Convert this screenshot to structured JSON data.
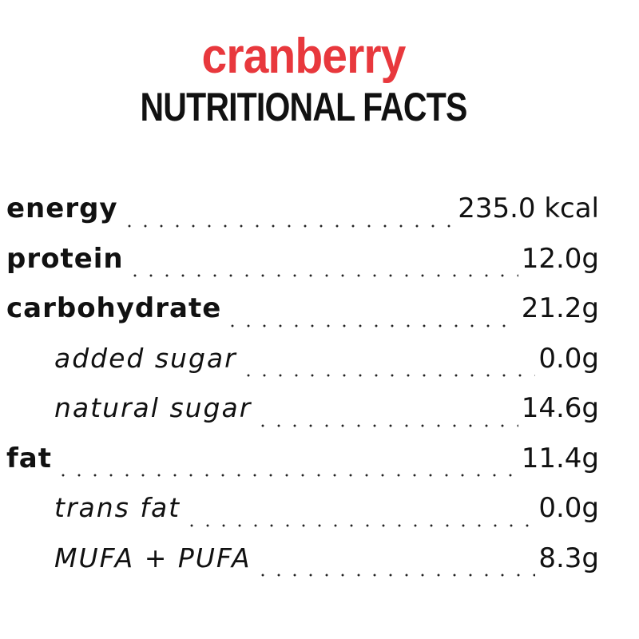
{
  "header": {
    "product_name": "cranberry",
    "title": "NUTRITIONAL FACTS"
  },
  "colors": {
    "product_name": "#e8383d",
    "text": "#111111",
    "background": "#ffffff"
  },
  "facts": [
    {
      "label": "energy",
      "value": "235.0 kcal",
      "level": "main"
    },
    {
      "label": "protein",
      "value": "12.0g",
      "level": "main"
    },
    {
      "label": "carbohydrate",
      "value": "21.2g",
      "level": "main"
    },
    {
      "label": "added sugar",
      "value": "0.0g",
      "level": "sub"
    },
    {
      "label": "natural sugar",
      "value": "14.6g",
      "level": "sub"
    },
    {
      "label": "fat",
      "value": "11.4g",
      "level": "main"
    },
    {
      "label": "trans fat",
      "value": "0.0g",
      "level": "sub"
    },
    {
      "label": "MUFA + PUFA",
      "value": "8.3g",
      "level": "sub"
    }
  ]
}
